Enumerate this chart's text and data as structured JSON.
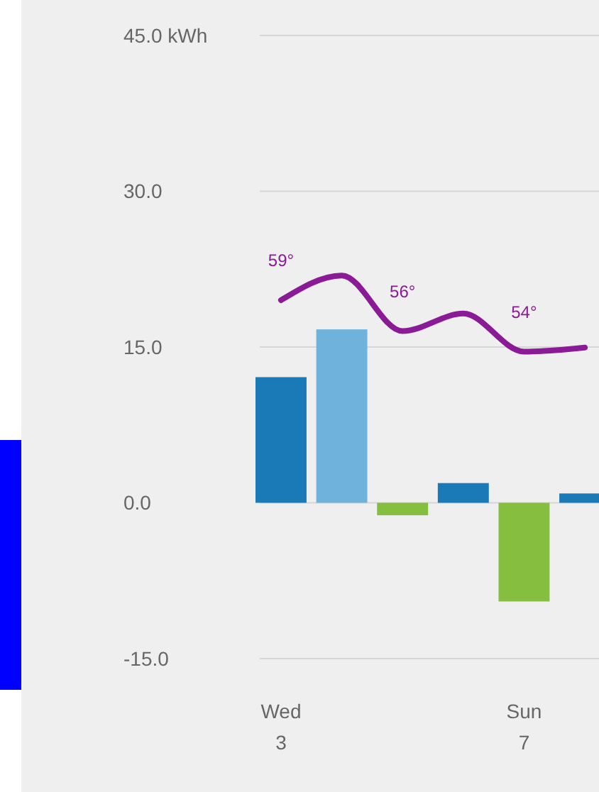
{
  "chart_data": {
    "type": "bar",
    "stacked": true,
    "categories": [
      "Wed\n3",
      null,
      null,
      null,
      "Sun\n7",
      null
    ],
    "series": [
      {
        "colors": [
          "#1a7ab8",
          null,
          "#86bf3f",
          "#1a7ab8",
          "#86bf3f",
          "#1a7ab8"
        ],
        "values": [
          12.1,
          null,
          -1.2,
          1.9,
          -9.5,
          0.9
        ]
      },
      {
        "color": "#6fb3dc",
        "values": [
          null,
          16.7,
          null,
          null,
          null,
          null
        ]
      },
      {
        "type": "line",
        "axis": "y2",
        "color": "#8b1a96",
        "values": [
          59,
          61.4,
          56,
          57.7,
          54,
          54.4
        ],
        "value_labels": [
          "59°",
          null,
          "56°",
          null,
          "54°",
          null
        ]
      }
    ],
    "y2lim": [
      24.2,
      84.7
    ],
    "ylim": [
      -15,
      45
    ],
    "yticks": [
      {
        "value": 45,
        "label": "45.0 kWh"
      },
      {
        "value": 30,
        "label": "30.0"
      },
      {
        "value": 15,
        "label": "15.0"
      },
      {
        "value": 0,
        "label": "0.0"
      },
      {
        "value": -15,
        "label": "-15.0"
      }
    ],
    "grid": "y",
    "marker": "none"
  }
}
